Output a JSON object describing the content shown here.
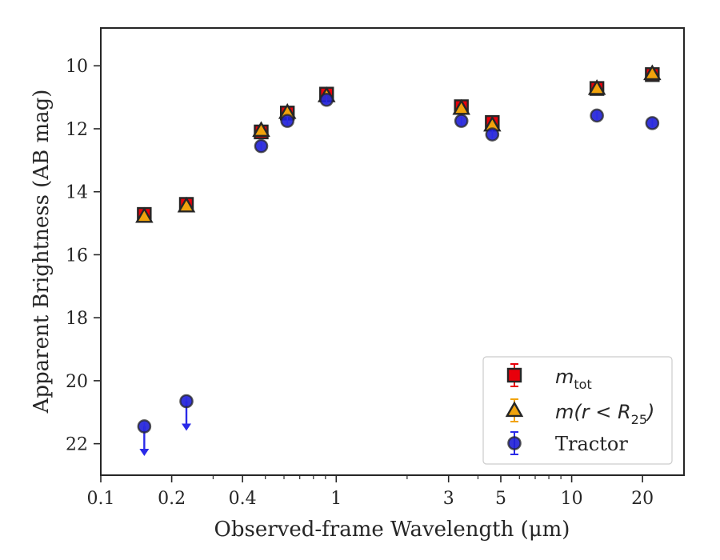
{
  "chart_data": {
    "type": "scatter",
    "title": "",
    "xlabel": "Observed-frame Wavelength (μm)",
    "ylabel": "Apparent Brightness (AB mag)",
    "xscale": "log",
    "xlim": [
      0.1,
      30
    ],
    "ylim": [
      23.0,
      8.8
    ],
    "y_inverted": true,
    "xticks": [
      {
        "value": 0.1,
        "label": "0.1"
      },
      {
        "value": 0.2,
        "label": "0.2"
      },
      {
        "value": 0.4,
        "label": "0.4"
      },
      {
        "value": 1,
        "label": "1"
      },
      {
        "value": 3,
        "label": "3"
      },
      {
        "value": 5,
        "label": "5"
      },
      {
        "value": 10,
        "label": "10"
      },
      {
        "value": 20,
        "label": "20"
      }
    ],
    "yticks": [
      {
        "value": 10,
        "label": "10"
      },
      {
        "value": 12,
        "label": "12"
      },
      {
        "value": 14,
        "label": "14"
      },
      {
        "value": 16,
        "label": "16"
      },
      {
        "value": 18,
        "label": "18"
      },
      {
        "value": 20,
        "label": "20"
      },
      {
        "value": 22,
        "label": "22"
      }
    ],
    "grid": false,
    "legend_position": "bottom-right",
    "series": [
      {
        "name": "m_tot",
        "legend_label": "m",
        "legend_sub": "tot",
        "marker": "square",
        "color": "#e8000b",
        "edge": "#262626",
        "errcolor": "#e8000b",
        "points": [
          {
            "x": 0.153,
            "y": 14.72
          },
          {
            "x": 0.231,
            "y": 14.4
          },
          {
            "x": 0.48,
            "y": 12.1
          },
          {
            "x": 0.62,
            "y": 11.5
          },
          {
            "x": 0.91,
            "y": 10.9
          },
          {
            "x": 3.4,
            "y": 11.3
          },
          {
            "x": 4.6,
            "y": 11.8
          },
          {
            "x": 12.8,
            "y": 10.72
          },
          {
            "x": 22.0,
            "y": 10.28
          }
        ]
      },
      {
        "name": "m(r<R25)",
        "legend_label": "m(r < R",
        "legend_sub": "25",
        "legend_tail": ")",
        "marker": "triangle",
        "color": "#f1a30c",
        "edge": "#262626",
        "errcolor": "#f1a30c",
        "points": [
          {
            "x": 0.153,
            "y": 14.78
          },
          {
            "x": 0.231,
            "y": 14.45
          },
          {
            "x": 0.48,
            "y": 12.05
          },
          {
            "x": 0.62,
            "y": 11.48
          },
          {
            "x": 0.91,
            "y": 10.95
          },
          {
            "x": 3.4,
            "y": 11.35
          },
          {
            "x": 4.6,
            "y": 11.88
          },
          {
            "x": 12.8,
            "y": 10.72
          },
          {
            "x": 22.0,
            "y": 10.25
          }
        ]
      },
      {
        "name": "Tractor",
        "legend_label": "Tractor",
        "marker": "circle",
        "color": "#1f1fd6",
        "edge": "#262626",
        "errcolor": "#2a2ae8",
        "points": [
          {
            "x": 0.153,
            "y": 21.45,
            "upper_limit": true
          },
          {
            "x": 0.231,
            "y": 20.65,
            "upper_limit": true
          },
          {
            "x": 0.48,
            "y": 12.55
          },
          {
            "x": 0.62,
            "y": 11.75
          },
          {
            "x": 0.91,
            "y": 11.08
          },
          {
            "x": 3.4,
            "y": 11.75
          },
          {
            "x": 4.6,
            "y": 12.18
          },
          {
            "x": 12.8,
            "y": 11.58
          },
          {
            "x": 22.0,
            "y": 11.82
          }
        ]
      }
    ]
  }
}
